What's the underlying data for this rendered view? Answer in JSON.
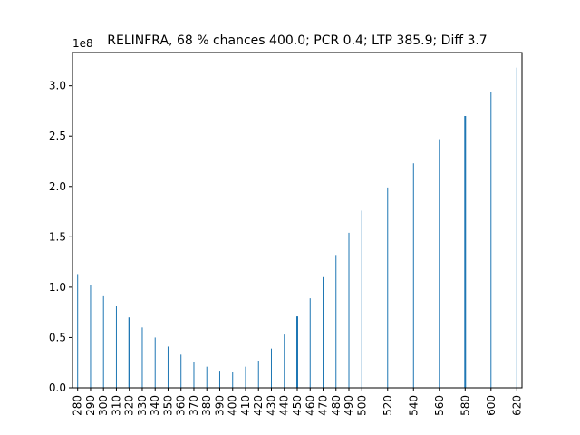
{
  "chart_data": {
    "type": "bar",
    "title": "RELINFRA, 68 % chances 400.0; PCR 0.4; LTP 385.9; Diff 3.7",
    "offset_text": "1e8",
    "xlabel": "",
    "ylabel": "",
    "ylim": [
      0,
      3.33
    ],
    "yticks": [
      "0.0",
      "0.5",
      "1.0",
      "1.5",
      "2.0",
      "2.5",
      "3.0"
    ],
    "grid": false,
    "legend": "none",
    "bar_color": "#1f77b4",
    "categories": [
      280,
      290,
      300,
      310,
      320,
      330,
      340,
      350,
      360,
      370,
      380,
      390,
      400,
      410,
      420,
      430,
      440,
      450,
      460,
      470,
      480,
      490,
      500,
      520,
      540,
      560,
      580,
      600,
      620
    ],
    "values": [
      1.13,
      1.02,
      0.91,
      0.81,
      0.7,
      0.6,
      0.5,
      0.41,
      0.33,
      0.26,
      0.21,
      0.17,
      0.16,
      0.21,
      0.27,
      0.39,
      0.53,
      0.71,
      0.89,
      1.1,
      1.32,
      1.54,
      1.76,
      1.99,
      2.23,
      2.47,
      2.7,
      2.94,
      3.18
    ],
    "thick_bars": [
      320,
      450,
      580
    ]
  }
}
